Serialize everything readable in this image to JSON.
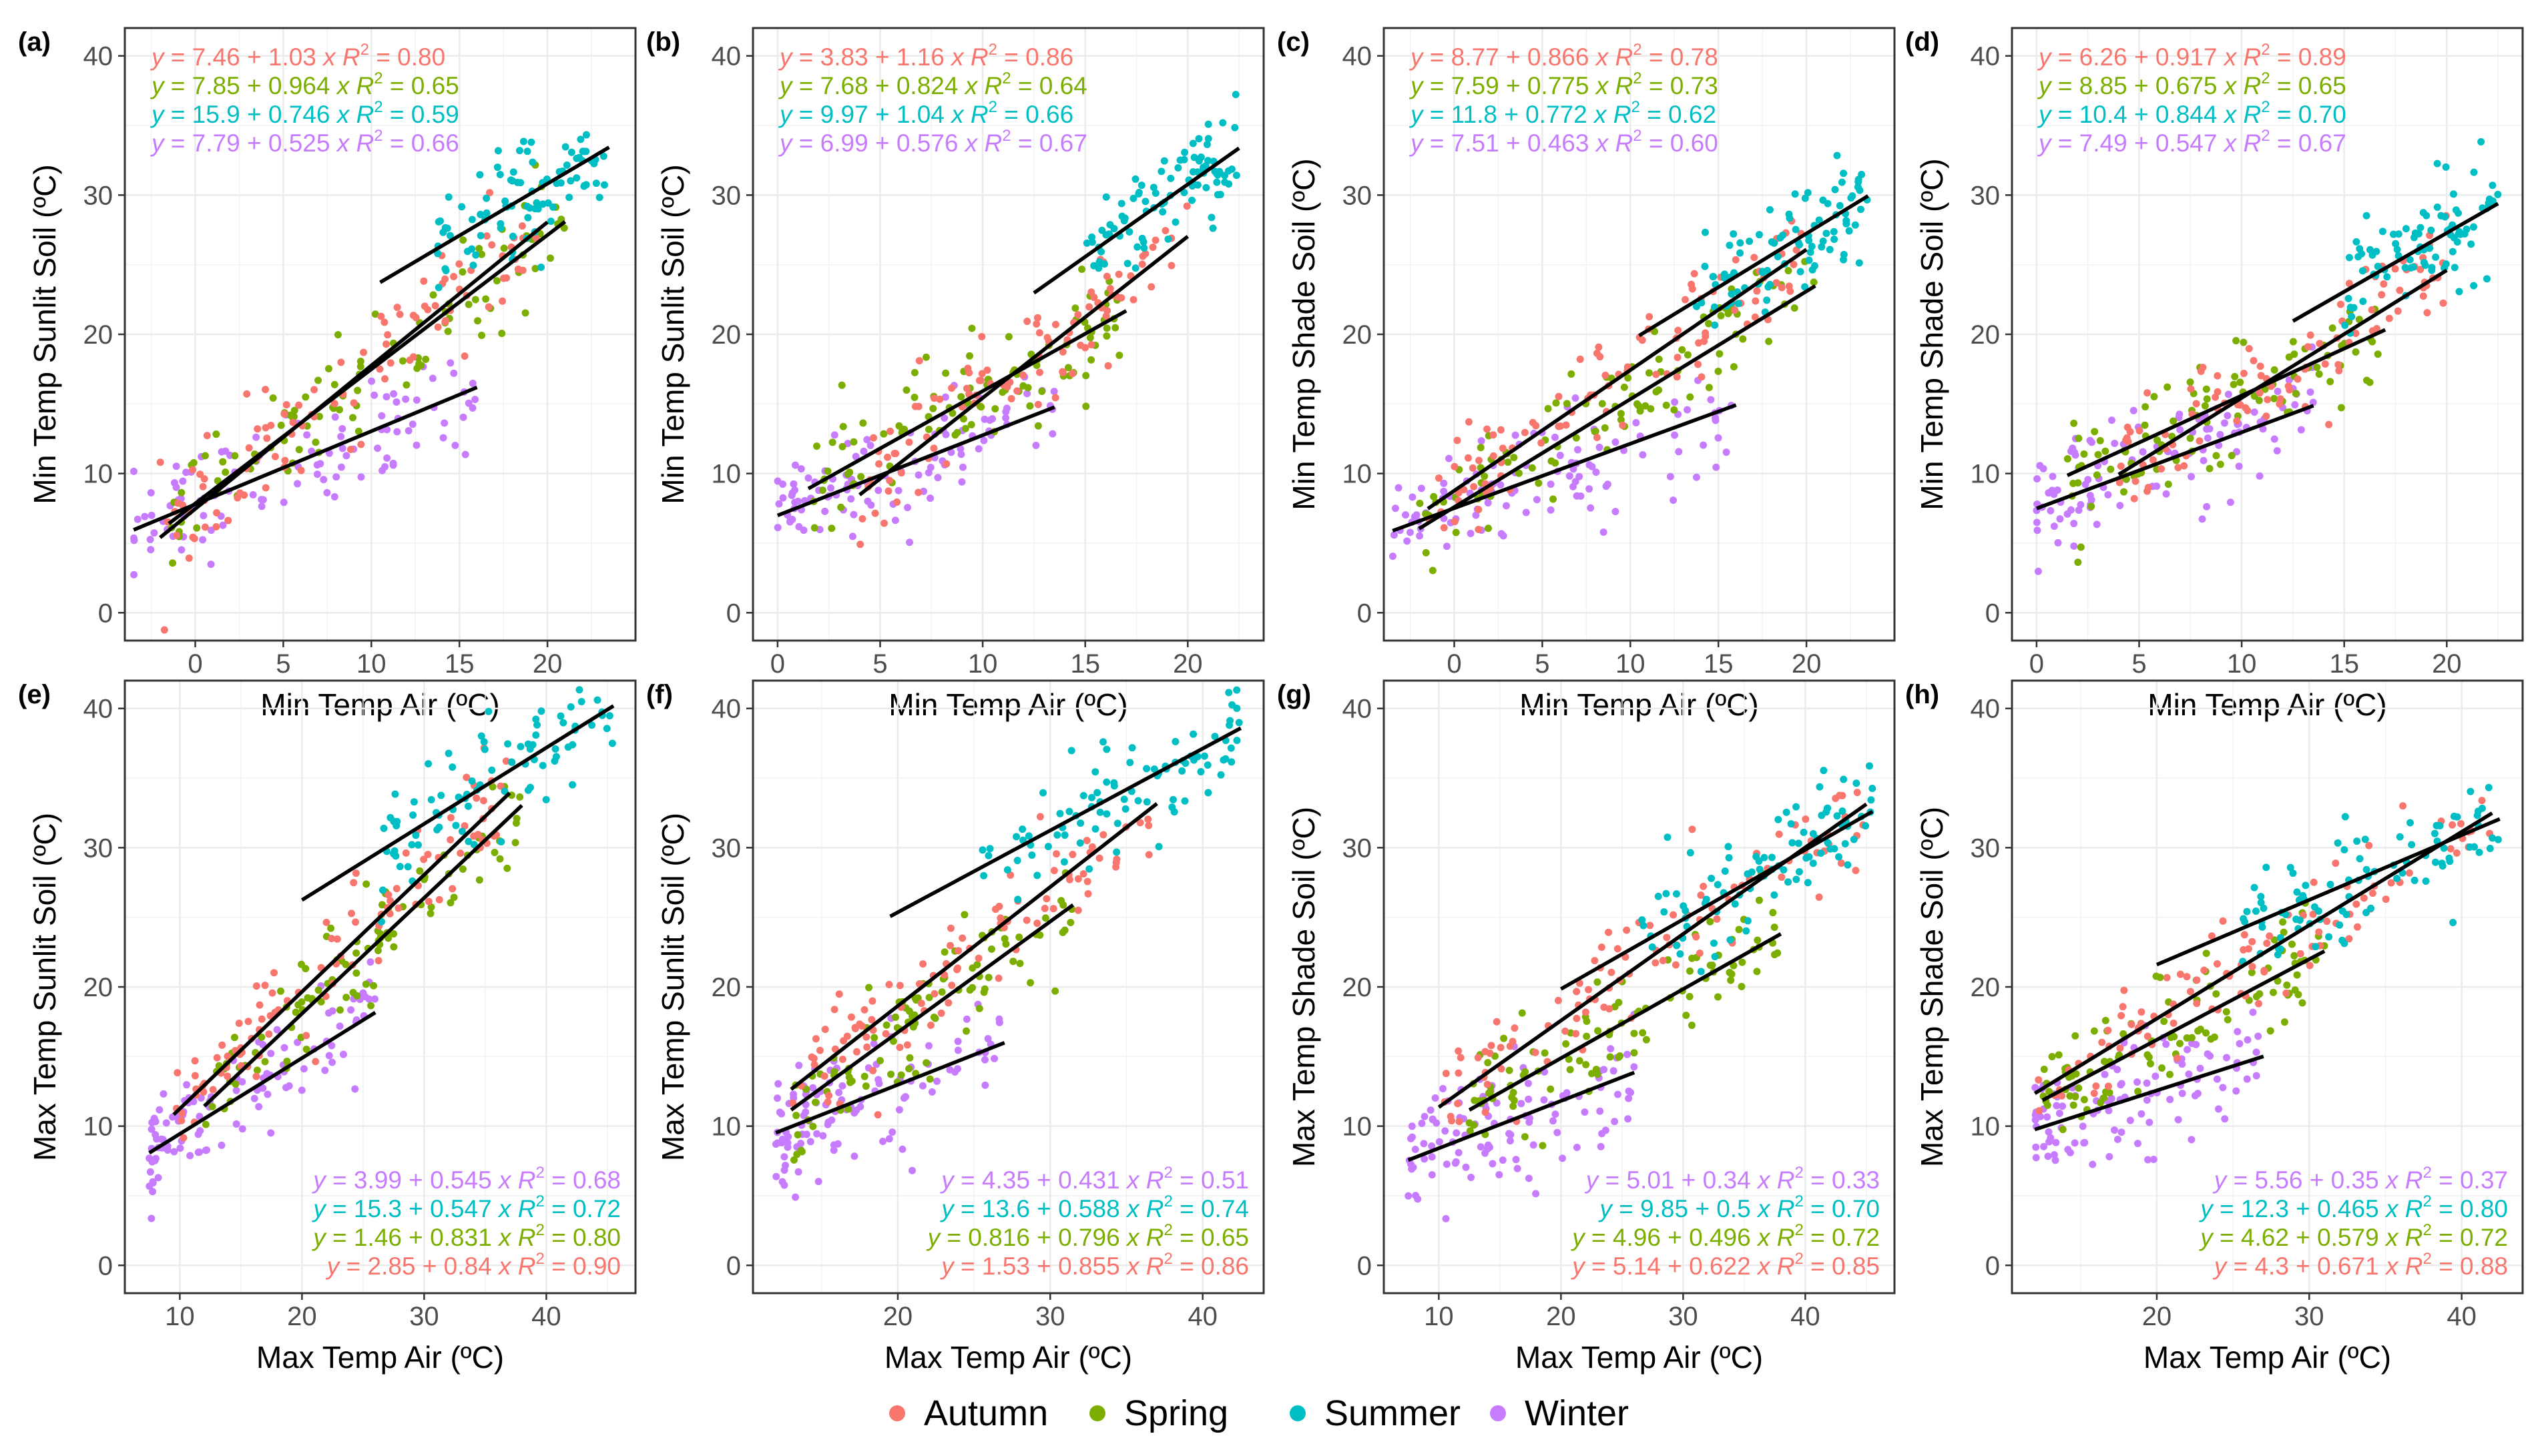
{
  "colors": {
    "Autumn": "#F8766D",
    "Spring": "#7CAE00",
    "Summer": "#00BFC4",
    "Winter": "#C77CFF",
    "fit_line": "#000000",
    "grid_major": "#EBEBEB",
    "panel_border": "#333333",
    "axis_text": "#4D4D4D"
  },
  "legend": {
    "entries": [
      {
        "season": "Autumn",
        "label": "Autumn"
      },
      {
        "season": "Spring",
        "label": "Spring"
      },
      {
        "season": "Summer",
        "label": "Summer"
      },
      {
        "season": "Winter",
        "label": "Winter"
      }
    ]
  },
  "chart_data": [
    {
      "tag": "(a)",
      "type": "scatter",
      "xlabel": "Min Temp Air (ºC)",
      "ylabel": "Min Temp Sunlit Soil (ºC)",
      "xlim": [
        -4,
        25
      ],
      "ylim": [
        -2,
        42
      ],
      "xticks": [
        0,
        5,
        10,
        15,
        20
      ],
      "yticks": [
        0,
        10,
        20,
        30,
        40
      ],
      "eq_position": "top-left",
      "series": [
        {
          "season": "Autumn",
          "x_range": [
            -2,
            20
          ],
          "intercept": 7.46,
          "slope": 1.03,
          "equation": "7.46 + 1.03",
          "r2": "0.80"
        },
        {
          "season": "Spring",
          "x_range": [
            -1.5,
            21
          ],
          "intercept": 7.85,
          "slope": 0.964,
          "equation": "7.85 + 0.964",
          "r2": "0.65"
        },
        {
          "season": "Summer",
          "x_range": [
            10.5,
            23.5
          ],
          "intercept": 15.9,
          "slope": 0.746,
          "equation": "15.9 + 0.746",
          "r2": "0.59"
        },
        {
          "season": "Winter",
          "x_range": [
            -3.5,
            16
          ],
          "intercept": 7.79,
          "slope": 0.525,
          "equation": "7.79 + 0.525",
          "r2": "0.66"
        }
      ]
    },
    {
      "tag": "(b)",
      "type": "scatter",
      "xlabel": "Min Temp Air (ºC)",
      "ylabel": "Min Temp Sunlit Soil (ºC)",
      "xlim": [
        -1.2,
        23.7
      ],
      "ylim": [
        -2,
        42
      ],
      "xticks": [
        0,
        5,
        10,
        15,
        20
      ],
      "yticks": [
        0,
        10,
        20,
        30,
        40
      ],
      "eq_position": "top-left",
      "series": [
        {
          "season": "Autumn",
          "x_range": [
            4,
            20
          ],
          "intercept": 3.83,
          "slope": 1.16,
          "equation": "3.83 + 1.16",
          "r2": "0.86"
        },
        {
          "season": "Spring",
          "x_range": [
            1.5,
            17
          ],
          "intercept": 7.68,
          "slope": 0.824,
          "equation": "7.68 + 0.824",
          "r2": "0.64"
        },
        {
          "season": "Summer",
          "x_range": [
            12.5,
            22.5
          ],
          "intercept": 9.97,
          "slope": 1.04,
          "equation": "9.97 + 1.04",
          "r2": "0.66"
        },
        {
          "season": "Winter",
          "x_range": [
            0,
            13.5
          ],
          "intercept": 6.99,
          "slope": 0.576,
          "equation": "6.99 + 0.576",
          "r2": "0.67"
        }
      ]
    },
    {
      "tag": "(c)",
      "type": "scatter",
      "xlabel": "Min Temp Air (ºC)",
      "ylabel": "Min Temp Shade Soil (ºC)",
      "xlim": [
        -4,
        25
      ],
      "ylim": [
        -2,
        42
      ],
      "xticks": [
        0,
        5,
        10,
        15,
        20
      ],
      "yticks": [
        0,
        10,
        20,
        30,
        40
      ],
      "eq_position": "top-left",
      "series": [
        {
          "season": "Autumn",
          "x_range": [
            -1.5,
            20
          ],
          "intercept": 8.77,
          "slope": 0.866,
          "equation": "8.77 + 0.866",
          "r2": "0.78"
        },
        {
          "season": "Spring",
          "x_range": [
            -2,
            20.5
          ],
          "intercept": 7.59,
          "slope": 0.775,
          "equation": "7.59 + 0.775",
          "r2": "0.73"
        },
        {
          "season": "Summer",
          "x_range": [
            10.5,
            23.5
          ],
          "intercept": 11.8,
          "slope": 0.772,
          "equation": "11.8 + 0.772",
          "r2": "0.62"
        },
        {
          "season": "Winter",
          "x_range": [
            -3.5,
            16
          ],
          "intercept": 7.51,
          "slope": 0.463,
          "equation": "7.51 + 0.463",
          "r2": "0.60"
        }
      ]
    },
    {
      "tag": "(d)",
      "type": "scatter",
      "xlabel": "Min Temp Air (ºC)",
      "ylabel": "Min Temp Shade Soil (ºC)",
      "xlim": [
        -1.2,
        23.7
      ],
      "ylim": [
        -2,
        42
      ],
      "xticks": [
        0,
        5,
        10,
        15,
        20
      ],
      "yticks": [
        0,
        10,
        20,
        30,
        40
      ],
      "eq_position": "top-left",
      "series": [
        {
          "season": "Autumn",
          "x_range": [
            4,
            20
          ],
          "intercept": 6.26,
          "slope": 0.917,
          "equation": "6.26 + 0.917",
          "r2": "0.89"
        },
        {
          "season": "Spring",
          "x_range": [
            1.5,
            17
          ],
          "intercept": 8.85,
          "slope": 0.675,
          "equation": "8.85 + 0.675",
          "r2": "0.65"
        },
        {
          "season": "Summer",
          "x_range": [
            12.5,
            22.5
          ],
          "intercept": 10.4,
          "slope": 0.844,
          "equation": "10.4 + 0.844",
          "r2": "0.70"
        },
        {
          "season": "Winter",
          "x_range": [
            0,
            13.5
          ],
          "intercept": 7.49,
          "slope": 0.547,
          "equation": "7.49 + 0.547",
          "r2": "0.67"
        }
      ]
    },
    {
      "tag": "(e)",
      "type": "scatter",
      "xlabel": "Max Temp Air (ºC)",
      "ylabel": "Max Temp Sunlit Soil (ºC)",
      "xlim": [
        5.5,
        47.3
      ],
      "ylim": [
        -2,
        42
      ],
      "xticks": [
        10,
        20,
        30,
        40
      ],
      "yticks": [
        0,
        10,
        20,
        30,
        40
      ],
      "eq_position": "bottom-right",
      "series": [
        {
          "season": "Winter",
          "x_range": [
            7.5,
            26
          ],
          "intercept": 3.99,
          "slope": 0.545,
          "equation": "3.99 + 0.545",
          "r2": "0.68"
        },
        {
          "season": "Summer",
          "x_range": [
            20,
            45.5
          ],
          "intercept": 15.3,
          "slope": 0.547,
          "equation": "15.3 + 0.547",
          "r2": "0.72"
        },
        {
          "season": "Spring",
          "x_range": [
            12,
            38
          ],
          "intercept": 1.46,
          "slope": 0.831,
          "equation": "1.46 + 0.831",
          "r2": "0.80"
        },
        {
          "season": "Autumn",
          "x_range": [
            9.5,
            37
          ],
          "intercept": 2.85,
          "slope": 0.84,
          "equation": "2.85 + 0.84",
          "r2": "0.90"
        }
      ]
    },
    {
      "tag": "(f)",
      "type": "scatter",
      "xlabel": "Max Temp Air (ºC)",
      "ylabel": "Max Temp Sunlit Soil (ºC)",
      "xlim": [
        10.5,
        44
      ],
      "ylim": [
        -2,
        42
      ],
      "xticks": [
        20,
        30,
        40
      ],
      "yticks": [
        0,
        10,
        20,
        30,
        40
      ],
      "eq_position": "bottom-right",
      "series": [
        {
          "season": "Winter",
          "x_range": [
            12,
            27
          ],
          "intercept": 4.35,
          "slope": 0.431,
          "equation": "4.35 + 0.431",
          "r2": "0.51"
        },
        {
          "season": "Summer",
          "x_range": [
            19.5,
            42.5
          ],
          "intercept": 13.6,
          "slope": 0.588,
          "equation": "13.6 + 0.588",
          "r2": "0.74"
        },
        {
          "season": "Spring",
          "x_range": [
            13,
            31.5
          ],
          "intercept": 0.816,
          "slope": 0.796,
          "equation": "0.816 + 0.796",
          "r2": "0.65"
        },
        {
          "season": "Autumn",
          "x_range": [
            13,
            37
          ],
          "intercept": 1.53,
          "slope": 0.855,
          "equation": "1.53 + 0.855",
          "r2": "0.86"
        }
      ]
    },
    {
      "tag": "(g)",
      "type": "scatter",
      "xlabel": "Max Temp Air (ºC)",
      "ylabel": "Max Temp Shade Soil (ºC)",
      "xlim": [
        5.5,
        47.3
      ],
      "ylim": [
        -2,
        42
      ],
      "xticks": [
        10,
        20,
        30,
        40
      ],
      "yticks": [
        0,
        10,
        20,
        30,
        40
      ],
      "eq_position": "bottom-right",
      "series": [
        {
          "season": "Winter",
          "x_range": [
            7.5,
            26
          ],
          "intercept": 5.01,
          "slope": 0.34,
          "equation": "5.01 + 0.34",
          "r2": "0.33"
        },
        {
          "season": "Summer",
          "x_range": [
            20,
            45.5
          ],
          "intercept": 9.85,
          "slope": 0.5,
          "equation": "9.85 + 0.5",
          "r2": "0.70"
        },
        {
          "season": "Spring",
          "x_range": [
            12.5,
            38
          ],
          "intercept": 4.96,
          "slope": 0.496,
          "equation": "4.96 + 0.496",
          "r2": "0.72"
        },
        {
          "season": "Autumn",
          "x_range": [
            10,
            45
          ],
          "intercept": 5.14,
          "slope": 0.622,
          "equation": "5.14 + 0.622",
          "r2": "0.85"
        }
      ]
    },
    {
      "tag": "(h)",
      "type": "scatter",
      "xlabel": "Max Temp Air (ºC)",
      "ylabel": "Max Temp Shade Soil (ºC)",
      "xlim": [
        10.5,
        44
      ],
      "ylim": [
        -2,
        42
      ],
      "xticks": [
        20,
        30,
        40
      ],
      "yticks": [
        0,
        10,
        20,
        30,
        40
      ],
      "eq_position": "bottom-right",
      "series": [
        {
          "season": "Winter",
          "x_range": [
            12,
            27
          ],
          "intercept": 5.56,
          "slope": 0.35,
          "equation": "5.56 + 0.35",
          "r2": "0.37"
        },
        {
          "season": "Summer",
          "x_range": [
            20,
            42.5
          ],
          "intercept": 12.3,
          "slope": 0.465,
          "equation": "12.3 + 0.465",
          "r2": "0.80"
        },
        {
          "season": "Spring",
          "x_range": [
            12.5,
            31
          ],
          "intercept": 4.62,
          "slope": 0.579,
          "equation": "4.62 + 0.579",
          "r2": "0.72"
        },
        {
          "season": "Autumn",
          "x_range": [
            12,
            42
          ],
          "intercept": 4.3,
          "slope": 0.671,
          "equation": "4.3 + 0.671",
          "r2": "0.88"
        }
      ]
    }
  ]
}
